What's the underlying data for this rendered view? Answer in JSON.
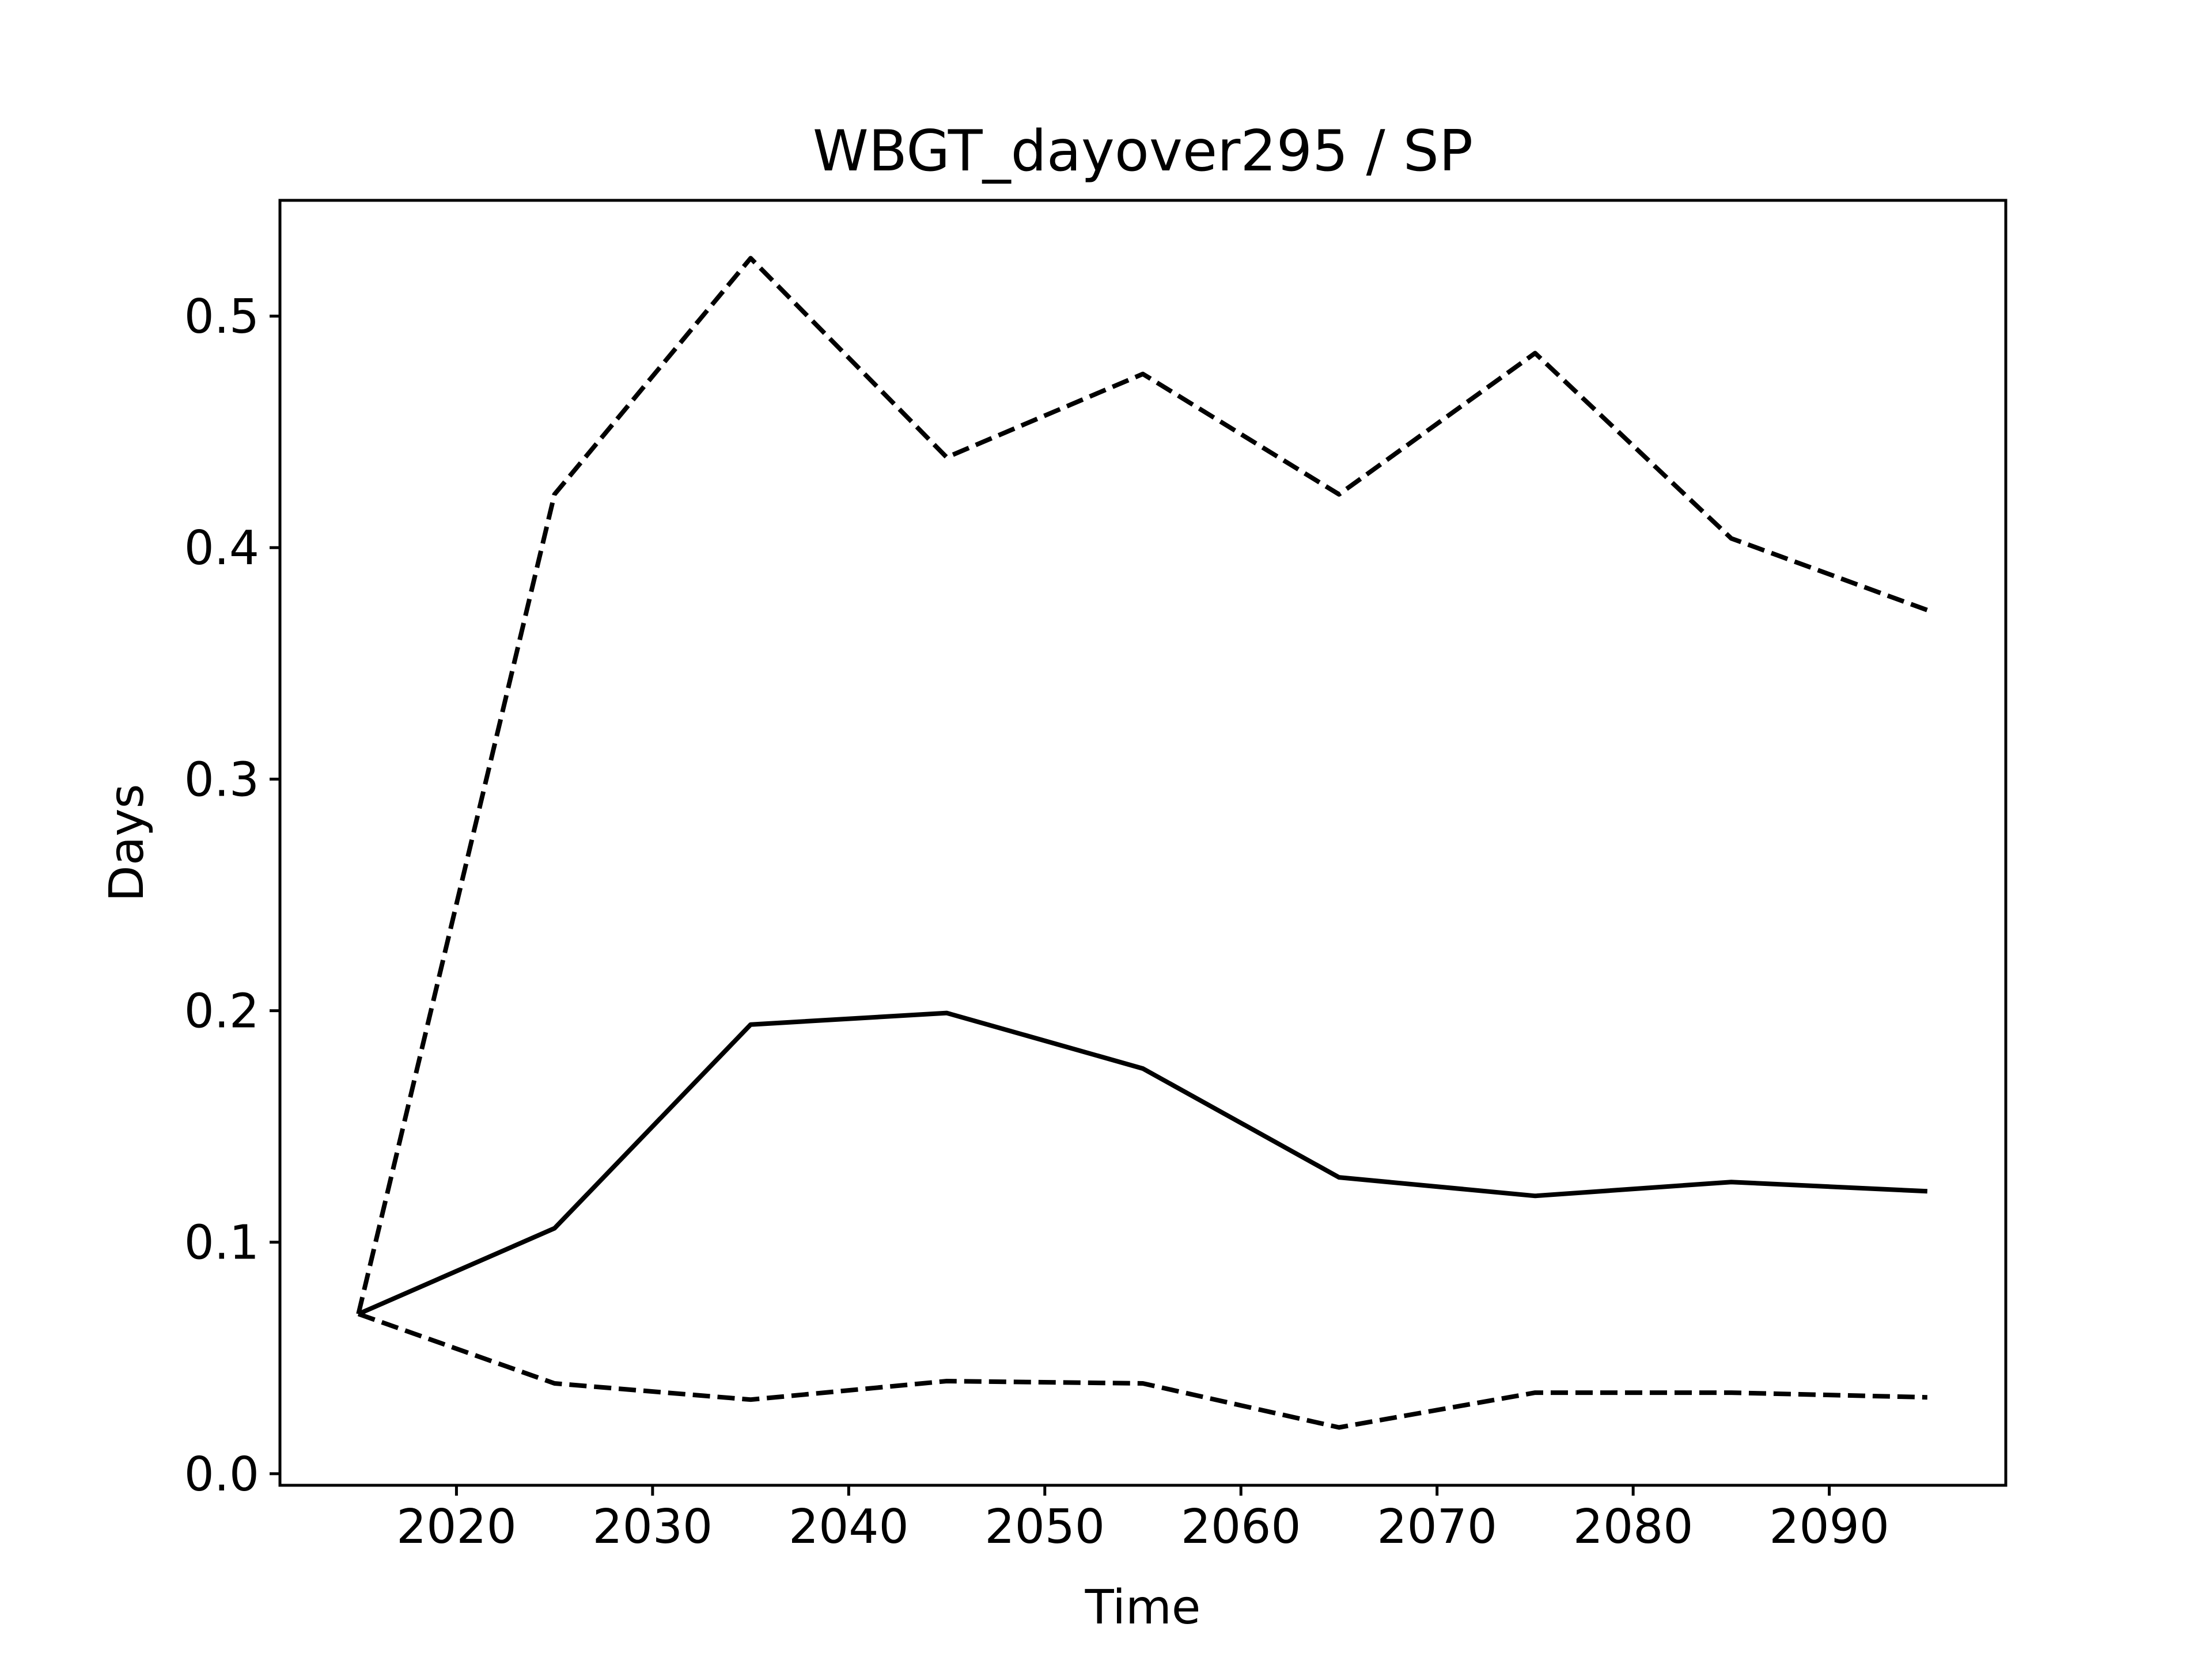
{
  "chart_data": {
    "type": "line",
    "title": "WBGT_dayover295 / SP",
    "xlabel": "Time",
    "ylabel": "Days",
    "xlim": [
      2011,
      2099
    ],
    "ylim": [
      -0.005,
      0.55
    ],
    "x_ticks": [
      2020,
      2030,
      2040,
      2050,
      2060,
      2070,
      2080,
      2090
    ],
    "y_ticks": [
      0.0,
      0.1,
      0.2,
      0.3,
      0.4,
      0.5
    ],
    "x_tick_labels": [
      "2020",
      "2030",
      "2040",
      "2050",
      "2060",
      "2070",
      "2080",
      "2090"
    ],
    "y_tick_labels": [
      "0.0",
      "0.1",
      "0.2",
      "0.3",
      "0.4",
      "0.5"
    ],
    "grid": false,
    "x": [
      2015,
      2025,
      2035,
      2045,
      2055,
      2065,
      2075,
      2085,
      2095
    ],
    "series": [
      {
        "style": "solid",
        "color": "#000000",
        "values": [
          0.069,
          0.106,
          0.194,
          0.199,
          0.175,
          0.128,
          0.12,
          0.126,
          0.122
        ]
      },
      {
        "style": "dashed",
        "color": "#000000",
        "values": [
          0.069,
          0.423,
          0.525,
          0.439,
          0.475,
          0.423,
          0.484,
          0.404,
          0.373
        ]
      },
      {
        "style": "dashed",
        "color": "#000000",
        "values": [
          0.069,
          0.039,
          0.032,
          0.04,
          0.039,
          0.02,
          0.035,
          0.035,
          0.033
        ]
      }
    ]
  }
}
